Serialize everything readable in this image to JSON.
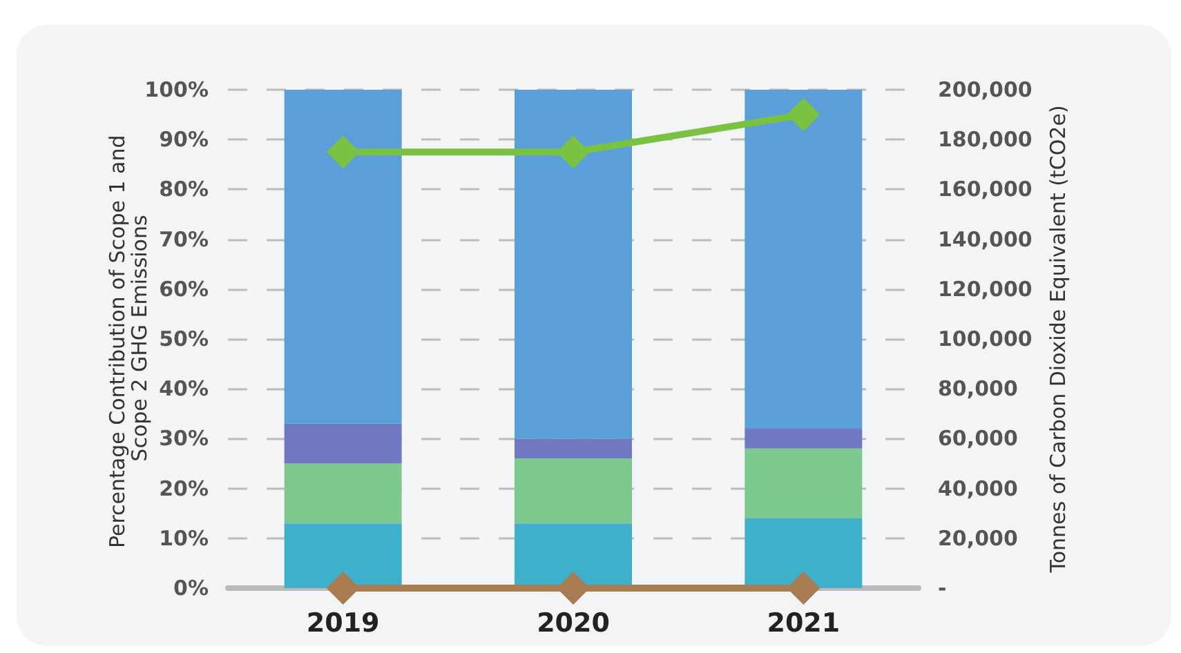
{
  "chart_data": {
    "type": "bar",
    "stacked": true,
    "ylabel": "Percentage Contribution of Scope 1 and Scope 2 GHG Emissions",
    "y2label": "Tonnes of Carbon Dioxide Equivalent (tCO2e)",
    "categories": [
      "2019",
      "2020",
      "2021"
    ],
    "series": [
      {
        "color": "#3fb0cc",
        "values": [
          13,
          13,
          14
        ]
      },
      {
        "color": "#7cc98f",
        "values": [
          12,
          13,
          14
        ]
      },
      {
        "color": "#6f78c0",
        "values": [
          8,
          4,
          4
        ]
      },
      {
        "color": "#5a9fd8",
        "values": [
          67,
          70,
          68
        ]
      },
      {
        "type": "line",
        "axis": "y2",
        "color": "#7bc142",
        "values": [
          175000,
          175000,
          190000
        ]
      },
      {
        "type": "line",
        "axis": "y2",
        "color": "#a87b50",
        "values": [
          0,
          0,
          0
        ]
      }
    ],
    "ylim": [
      0,
      100
    ],
    "yticks": [
      {
        "value": 0,
        "label": "0%"
      },
      {
        "value": 10,
        "label": "10%"
      },
      {
        "value": 20,
        "label": "20%"
      },
      {
        "value": 30,
        "label": "30%"
      },
      {
        "value": 40,
        "label": "40%"
      },
      {
        "value": 50,
        "label": "50%"
      },
      {
        "value": 60,
        "label": "60%"
      },
      {
        "value": 70,
        "label": "70%"
      },
      {
        "value": 80,
        "label": "80%"
      },
      {
        "value": 90,
        "label": "90%"
      },
      {
        "value": 100,
        "label": "100%"
      }
    ],
    "y2lim": [
      0,
      200000
    ],
    "y2ticks": [
      {
        "value": 0,
        "label": "-"
      },
      {
        "value": 20000,
        "label": "20,000"
      },
      {
        "value": 40000,
        "label": "40,000"
      },
      {
        "value": 60000,
        "label": "60,000"
      },
      {
        "value": 80000,
        "label": "80,000"
      },
      {
        "value": 100000,
        "label": "100,000"
      },
      {
        "value": 120000,
        "label": "120,000"
      },
      {
        "value": 140000,
        "label": "140,000"
      },
      {
        "value": 160000,
        "label": "160,000"
      },
      {
        "value": 180000,
        "label": "180,000"
      },
      {
        "value": 200000,
        "label": "200,000"
      }
    ],
    "grid": "y",
    "marker": "diamond",
    "line_style": "solid"
  }
}
